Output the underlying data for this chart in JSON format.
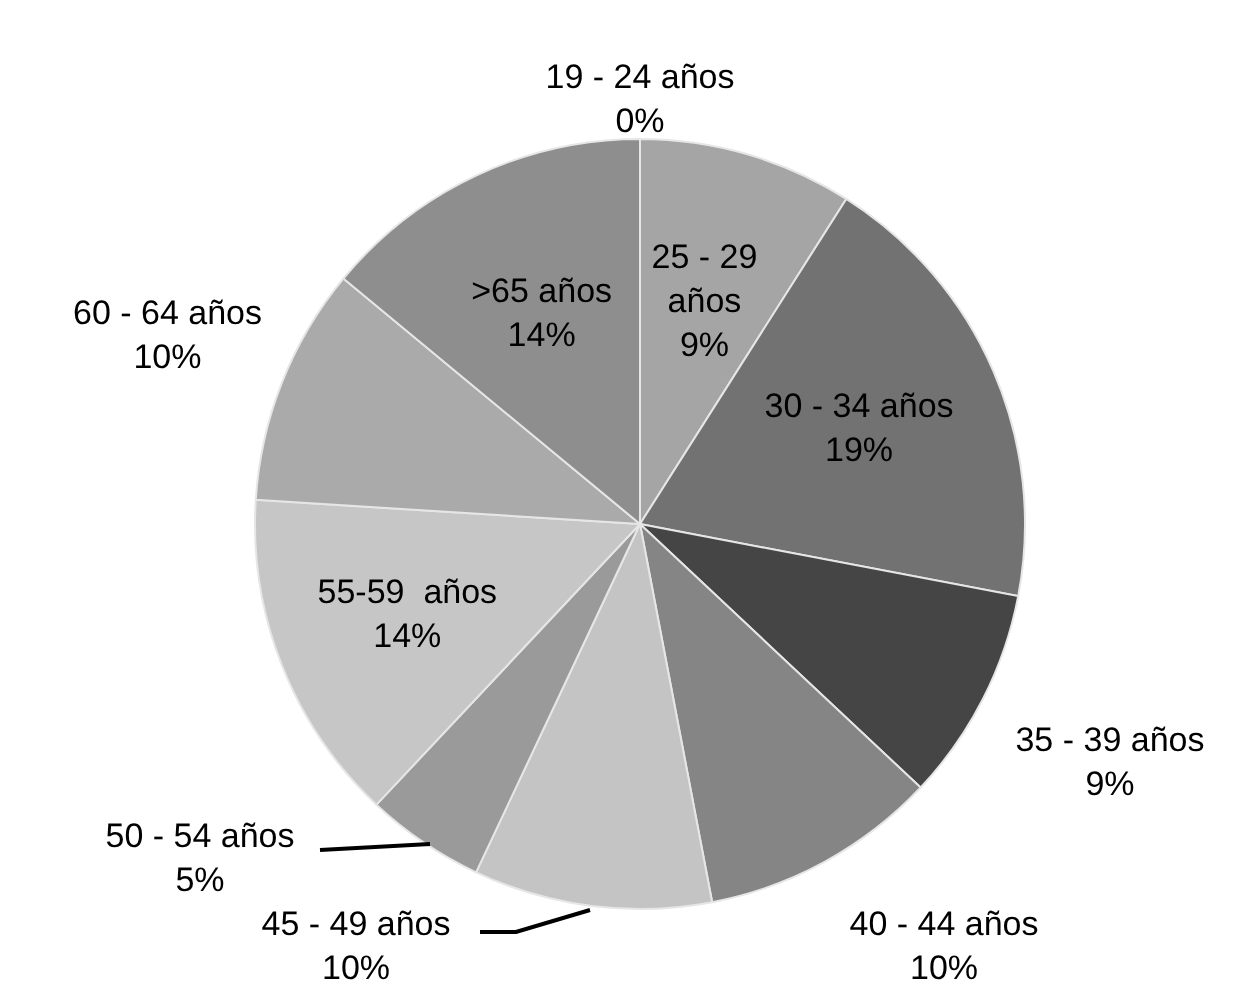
{
  "chart_data": {
    "type": "pie",
    "categories": [
      "19 - 24 años",
      "25 - 29 años",
      "30 - 34 años",
      "35 - 39 años",
      "40 - 44 años",
      "45 - 49 años",
      "50 - 54 años",
      "55-59  años",
      "60 - 64 años",
      ">65 años"
    ],
    "values": [
      0,
      9,
      19,
      9,
      10,
      10,
      5,
      14,
      10,
      14
    ],
    "value_labels": [
      "0%",
      "9%",
      "19%",
      "9%",
      "10%",
      "10%",
      "5%",
      "14%",
      "10%",
      "14%"
    ],
    "colors": [
      "#a5a5a5",
      "#a5a5a5",
      "#727272",
      "#454545",
      "#858585",
      "#c4c4c4",
      "#9a9a9a",
      "#c6c6c6",
      "#aaaaaa",
      "#8e8e8e"
    ],
    "legend": false
  }
}
